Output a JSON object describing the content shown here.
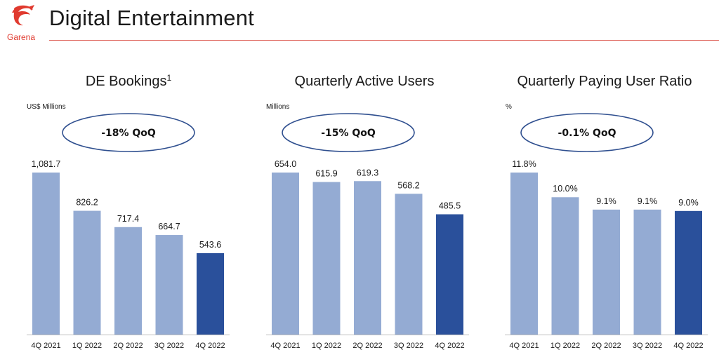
{
  "page": {
    "title": "Digital Entertainment",
    "logo_text": "Garena"
  },
  "colors": {
    "bar_light": "#94abd3",
    "bar_dark": "#2a509b",
    "ellipse_stroke": "#2f4f8f",
    "header_rule": "#e06a62",
    "logo_red": "#e03a2f"
  },
  "chart_data": [
    {
      "type": "bar",
      "title": "DE Bookings",
      "title_superscript": "1",
      "unit_label": "US$ Millions",
      "badge": "-18% QoQ",
      "categories": [
        "4Q 2021",
        "1Q 2022",
        "2Q 2022",
        "3Q 2022",
        "4Q 2022"
      ],
      "values": [
        1081.7,
        826.2,
        717.4,
        664.7,
        543.6
      ],
      "value_labels": [
        "1,081.7",
        "826.2",
        "717.4",
        "664.7",
        "543.6"
      ],
      "highlight_index": 4,
      "ylim": [
        0,
        1081.7
      ]
    },
    {
      "type": "bar",
      "title": "Quarterly Active Users",
      "unit_label": "Millions",
      "badge": "-15% QoQ",
      "categories": [
        "4Q 2021",
        "1Q 2022",
        "2Q 2022",
        "3Q 2022",
        "4Q 2022"
      ],
      "values": [
        654.0,
        615.9,
        619.3,
        568.2,
        485.5
      ],
      "value_labels": [
        "654.0",
        "615.9",
        "619.3",
        "568.2",
        "485.5"
      ],
      "highlight_index": 4,
      "ylim": [
        0,
        654.0
      ]
    },
    {
      "type": "bar",
      "title": "Quarterly Paying User Ratio",
      "unit_label": "%",
      "badge": "-0.1% QoQ",
      "categories": [
        "4Q 2021",
        "1Q 2022",
        "2Q 2022",
        "3Q 2022",
        "4Q 2022"
      ],
      "values": [
        11.8,
        10.0,
        9.1,
        9.1,
        9.0
      ],
      "value_labels": [
        "11.8%",
        "10.0%",
        "9.1%",
        "9.1%",
        "9.0%"
      ],
      "highlight_index": 4,
      "ylim": [
        0,
        11.8
      ]
    }
  ]
}
